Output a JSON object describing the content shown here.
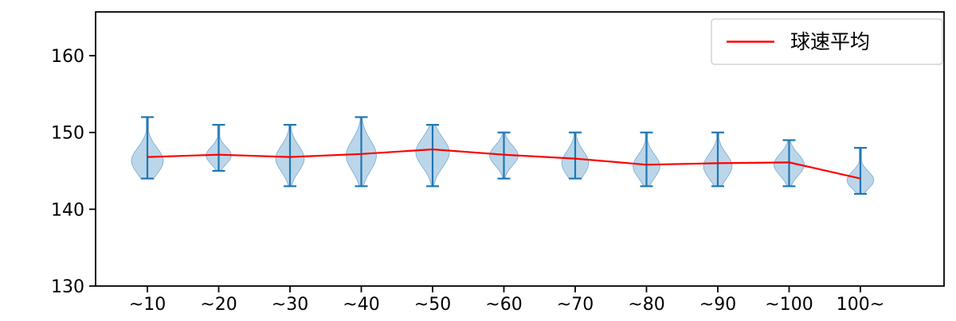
{
  "figure": {
    "background": "#ffffff"
  },
  "chart_data": {
    "type": "violin",
    "title": "",
    "xlabel": "",
    "ylabel": "",
    "categories": [
      "~10",
      "~20",
      "~30",
      "~40",
      "~50",
      "~60",
      "~70",
      "~80",
      "~90",
      "~100",
      "100~"
    ],
    "ylim": [
      130,
      165.7
    ],
    "yticks": [
      130,
      140,
      150,
      160
    ],
    "grid": false,
    "legend": {
      "position": "upper right",
      "entries": [
        {
          "label": "球速平均",
          "marker": "line",
          "color": "#ff0000"
        }
      ]
    },
    "mean_line": {
      "name": "球速平均",
      "color": "#ff0000",
      "values": [
        146.8,
        147.1,
        146.8,
        147.2,
        147.8,
        147.1,
        146.6,
        145.8,
        146.0,
        146.1,
        144.0
      ]
    },
    "violins": [
      {
        "category": "~10",
        "min": 144,
        "max": 152,
        "peak": 146.3,
        "spread": 1.7,
        "width": 0.95
      },
      {
        "category": "~20",
        "min": 145,
        "max": 151,
        "peak": 147.0,
        "spread": 1.1,
        "width": 0.75
      },
      {
        "category": "~30",
        "min": 143,
        "max": 151,
        "peak": 146.6,
        "spread": 1.7,
        "width": 0.85
      },
      {
        "category": "~40",
        "min": 143,
        "max": 152,
        "peak": 147.0,
        "spread": 2.0,
        "width": 0.9
      },
      {
        "category": "~50",
        "min": 143,
        "max": 151,
        "peak": 147.4,
        "spread": 1.9,
        "width": 1.0
      },
      {
        "category": "~60",
        "min": 144,
        "max": 150,
        "peak": 147.0,
        "spread": 1.3,
        "width": 0.85
      },
      {
        "category": "~70",
        "min": 144,
        "max": 150,
        "peak": 146.0,
        "spread": 1.6,
        "width": 0.8
      },
      {
        "category": "~80",
        "min": 143,
        "max": 150,
        "peak": 145.6,
        "spread": 1.5,
        "width": 0.8
      },
      {
        "category": "~90",
        "min": 143,
        "max": 150,
        "peak": 145.6,
        "spread": 1.6,
        "width": 0.85
      },
      {
        "category": "~100",
        "min": 143,
        "max": 149,
        "peak": 145.8,
        "spread": 1.4,
        "width": 0.9
      },
      {
        "category": "100~",
        "min": 142,
        "max": 148,
        "peak": 143.8,
        "spread": 1.1,
        "width": 0.8
      }
    ],
    "colors": {
      "violin_fill": "#bcd6e9",
      "violin_edge": "#8ab4d8",
      "whisker": "#1f77b4",
      "mean_line": "#ff0000",
      "axis": "#000000",
      "text": "#000000",
      "legend_border": "#cccccc"
    }
  }
}
